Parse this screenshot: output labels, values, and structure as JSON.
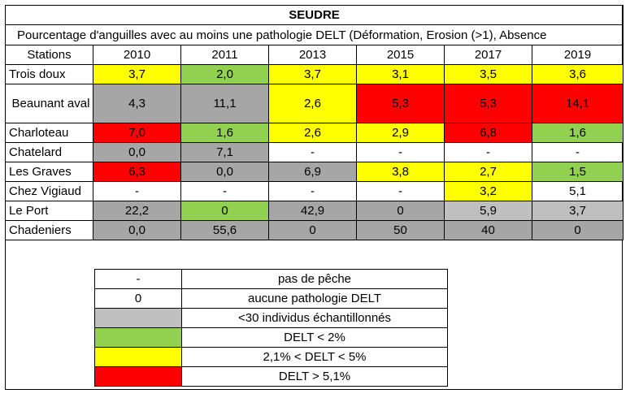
{
  "title": "SEUDRE",
  "subtitle": "Pourcentage d'anguilles avec au moins une pathologie DELT (Déformation, Erosion (>1), Absence",
  "header": [
    "Stations",
    "2010",
    "2011",
    "2013",
    "2015",
    "2017",
    "2019"
  ],
  "rows": [
    {
      "station": "Trois doux",
      "cells": [
        {
          "v": "3,7",
          "c": "yellow"
        },
        {
          "v": "2,0",
          "c": "green"
        },
        {
          "v": "3,7",
          "c": "yellow"
        },
        {
          "v": "3,1",
          "c": "yellow"
        },
        {
          "v": "3,5",
          "c": "yellow"
        },
        {
          "v": "3,6",
          "c": "yellow"
        }
      ]
    },
    {
      "station": "Beaunant aval",
      "cells": [
        {
          "v": "4,3",
          "c": "gray"
        },
        {
          "v": "11,1",
          "c": "gray"
        },
        {
          "v": "2,6",
          "c": "yellow"
        },
        {
          "v": "5,3",
          "c": "red"
        },
        {
          "v": "5,3",
          "c": "red"
        },
        {
          "v": "14,1",
          "c": "red"
        }
      ]
    },
    {
      "station": "Charloteau",
      "cells": [
        {
          "v": "7,0",
          "c": "red"
        },
        {
          "v": "1,6",
          "c": "green"
        },
        {
          "v": "2,6",
          "c": "yellow"
        },
        {
          "v": "2,9",
          "c": "yellow"
        },
        {
          "v": "6,8",
          "c": "red"
        },
        {
          "v": "1,6",
          "c": "green"
        }
      ]
    },
    {
      "station": "Chatelard",
      "cells": [
        {
          "v": "0,0",
          "c": "gray"
        },
        {
          "v": "7,1",
          "c": "gray"
        },
        {
          "v": "-",
          "c": "white"
        },
        {
          "v": "-",
          "c": "white"
        },
        {
          "v": "-",
          "c": "white"
        },
        {
          "v": "-",
          "c": "white"
        }
      ]
    },
    {
      "station": "Les Graves",
      "cells": [
        {
          "v": "6,3",
          "c": "red"
        },
        {
          "v": "0,0",
          "c": "gray"
        },
        {
          "v": "6,9",
          "c": "gray"
        },
        {
          "v": "3,8",
          "c": "yellow"
        },
        {
          "v": "2,7",
          "c": "yellow"
        },
        {
          "v": "1,5",
          "c": "green"
        }
      ]
    },
    {
      "station": "Chez Vigiaud",
      "cells": [
        {
          "v": "-",
          "c": "white"
        },
        {
          "v": "-",
          "c": "white"
        },
        {
          "v": "-",
          "c": "white"
        },
        {
          "v": "-",
          "c": "white"
        },
        {
          "v": "3,2",
          "c": "yellow"
        },
        {
          "v": "5,1",
          "c": "white"
        }
      ]
    },
    {
      "station": "Le Port",
      "cells": [
        {
          "v": "22,2",
          "c": "gray"
        },
        {
          "v": "0",
          "c": "green"
        },
        {
          "v": "42,9",
          "c": "gray"
        },
        {
          "v": "0",
          "c": "gray"
        },
        {
          "v": "5,9",
          "c": "lgray"
        },
        {
          "v": "3,7",
          "c": "lgray"
        }
      ]
    },
    {
      "station": "Chadeniers",
      "cells": [
        {
          "v": "0,0",
          "c": "gray"
        },
        {
          "v": "55,6",
          "c": "gray"
        },
        {
          "v": "0",
          "c": "gray"
        },
        {
          "v": "50",
          "c": "gray"
        },
        {
          "v": "40",
          "c": "gray"
        },
        {
          "v": "0",
          "c": "gray"
        }
      ]
    }
  ],
  "legend": [
    {
      "symbol": "-",
      "c": "white",
      "label": "pas de pêche"
    },
    {
      "symbol": "0",
      "c": "white",
      "label": "aucune pathologie DELT"
    },
    {
      "symbol": "",
      "c": "lgray",
      "label": "<30 individus échantillonnés"
    },
    {
      "symbol": "",
      "c": "green",
      "label": "DELT < 2%"
    },
    {
      "symbol": "",
      "c": "yellow",
      "label": "2,1% < DELT < 5%"
    },
    {
      "symbol": "",
      "c": "red",
      "label": "DELT > 5,1%"
    }
  ]
}
